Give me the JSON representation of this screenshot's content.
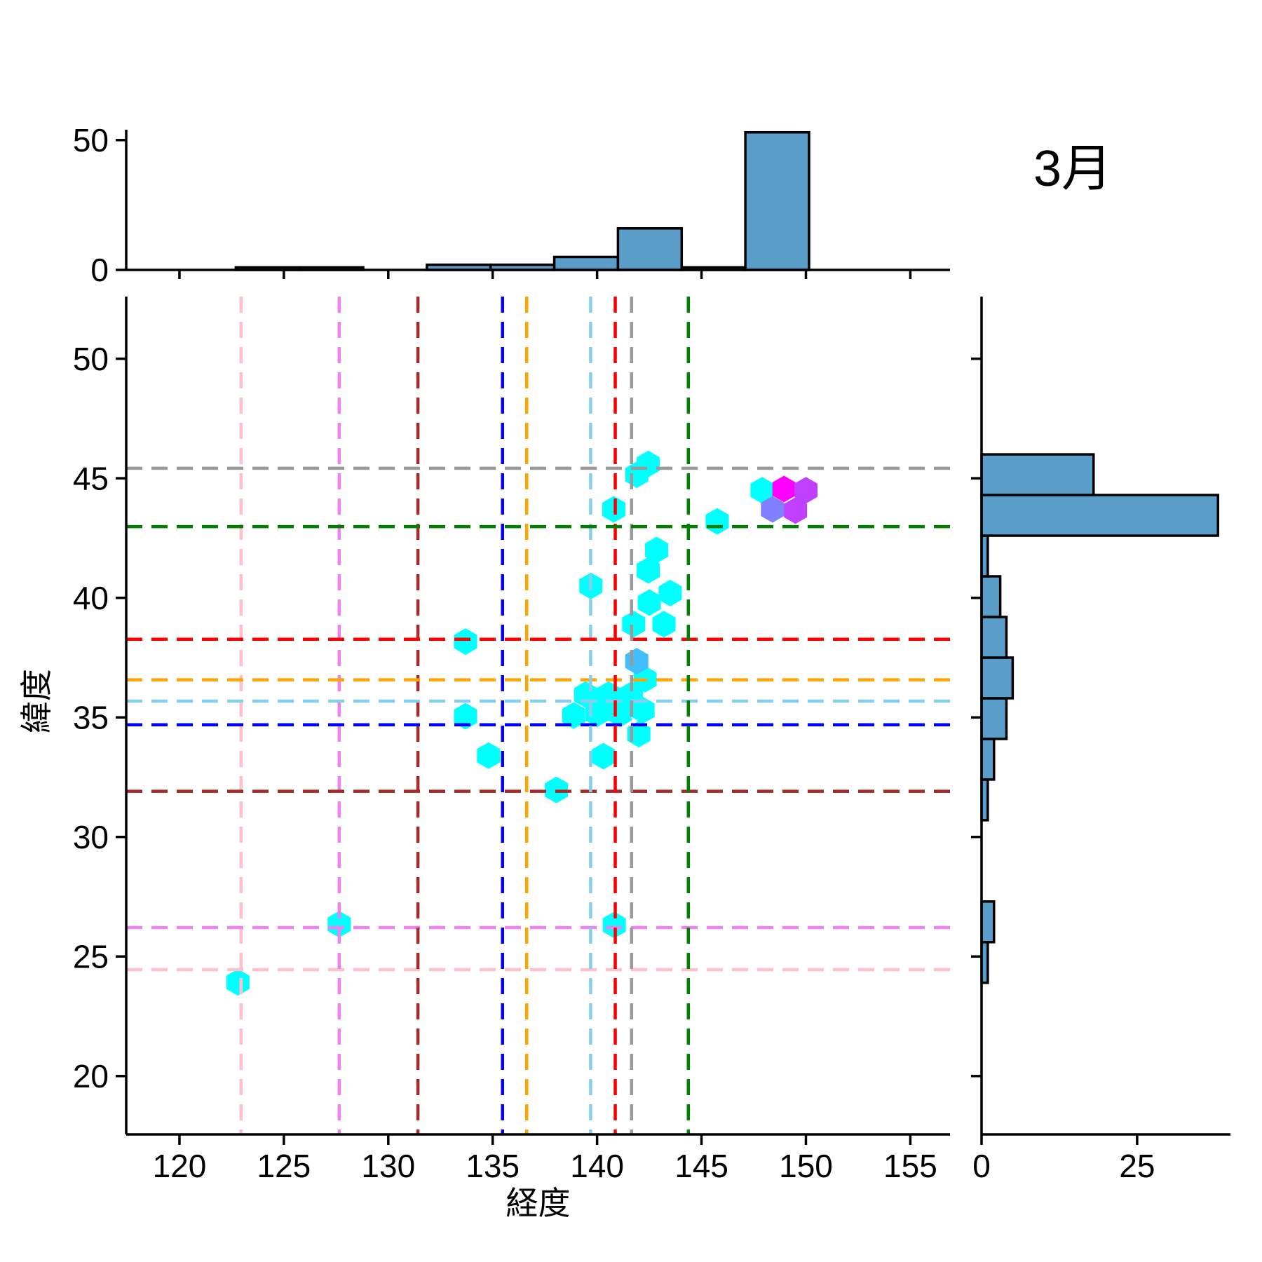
{
  "title": "3月",
  "axes": {
    "main": {
      "xlabel": "経度",
      "ylabel": "緯度",
      "xlim": [
        117.45,
        156.9
      ],
      "ylim": [
        17.56,
        52.6
      ],
      "xticks": [
        120,
        125,
        130,
        135,
        140,
        145,
        150,
        155
      ],
      "yticks": [
        20,
        25,
        30,
        35,
        40,
        45,
        50
      ]
    },
    "top_marginal": {
      "ylim": [
        0,
        54
      ],
      "yticks": [
        0,
        50
      ]
    },
    "right_marginal": {
      "xlim": [
        0,
        40
      ],
      "xticks": [
        0,
        25
      ]
    }
  },
  "colors": {
    "histogram_fill": "#5B9DC9",
    "histogram_edge": "#000000",
    "hex_low": "#00FFFF",
    "hex_high": "#FF00FF",
    "axis": "#000000"
  },
  "chart_data": [
    {
      "id": "main-hexbin",
      "type": "scatter",
      "marker": "hexagon",
      "colormap": "cool (cyan = low density, magenta = high density)",
      "xlabel": "経度",
      "ylabel": "緯度",
      "xlim": [
        117.45,
        156.9
      ],
      "ylim": [
        17.56,
        52.6
      ],
      "xticks": [
        120,
        125,
        130,
        135,
        140,
        145,
        150,
        155
      ],
      "yticks": [
        20,
        25,
        30,
        35,
        40,
        45,
        50
      ],
      "points": [
        {
          "lon": 122.8,
          "lat": 23.92,
          "color": "#00FFFF",
          "density_level": 1
        },
        {
          "lon": 127.65,
          "lat": 26.35,
          "color": "#00FFFF",
          "density_level": 1
        },
        {
          "lon": 140.82,
          "lat": 26.32,
          "color": "#00FFFF",
          "density_level": 1
        },
        {
          "lon": 138.05,
          "lat": 31.97,
          "color": "#00FFFF",
          "density_level": 1
        },
        {
          "lon": 134.8,
          "lat": 33.4,
          "color": "#00FFFF",
          "density_level": 1
        },
        {
          "lon": 140.3,
          "lat": 33.38,
          "color": "#00FFFF",
          "density_level": 1
        },
        {
          "lon": 133.7,
          "lat": 35.05,
          "color": "#00FFFF",
          "density_level": 1
        },
        {
          "lon": 133.7,
          "lat": 38.17,
          "color": "#00FFFF",
          "density_level": 1
        },
        {
          "lon": 138.88,
          "lat": 35.08,
          "color": "#00FFFF",
          "density_level": 1
        },
        {
          "lon": 139.45,
          "lat": 35.95,
          "color": "#00FFFF",
          "density_level": 1
        },
        {
          "lon": 140.0,
          "lat": 35.15,
          "color": "#00FFFF",
          "density_level": 1
        },
        {
          "lon": 140.55,
          "lat": 35.95,
          "color": "#00FFFF",
          "density_level": 1
        },
        {
          "lon": 141.1,
          "lat": 35.15,
          "color": "#00FFFF",
          "density_level": 1
        },
        {
          "lon": 141.65,
          "lat": 35.95,
          "color": "#00FFFF",
          "density_level": 1
        },
        {
          "lon": 142.2,
          "lat": 35.3,
          "color": "#00FFFF",
          "density_level": 1
        },
        {
          "lon": 142.0,
          "lat": 34.3,
          "color": "#00FFFF",
          "density_level": 1
        },
        {
          "lon": 142.3,
          "lat": 36.6,
          "color": "#00FFFF",
          "density_level": 1
        },
        {
          "lon": 141.9,
          "lat": 37.35,
          "color": "#40BFFF",
          "density_level": 2
        },
        {
          "lon": 141.75,
          "lat": 38.9,
          "color": "#00FFFF",
          "density_level": 1
        },
        {
          "lon": 143.2,
          "lat": 38.9,
          "color": "#00FFFF",
          "density_level": 1
        },
        {
          "lon": 142.5,
          "lat": 39.8,
          "color": "#00FFFF",
          "density_level": 1
        },
        {
          "lon": 139.7,
          "lat": 40.5,
          "color": "#00FFFF",
          "density_level": 1
        },
        {
          "lon": 143.5,
          "lat": 40.2,
          "color": "#00FFFF",
          "density_level": 1
        },
        {
          "lon": 142.45,
          "lat": 41.15,
          "color": "#00FFFF",
          "density_level": 1
        },
        {
          "lon": 142.85,
          "lat": 42.0,
          "color": "#00FFFF",
          "density_level": 1
        },
        {
          "lon": 140.8,
          "lat": 43.7,
          "color": "#00FFFF",
          "density_level": 1
        },
        {
          "lon": 145.75,
          "lat": 43.2,
          "color": "#00FFFF",
          "density_level": 1
        },
        {
          "lon": 141.9,
          "lat": 45.15,
          "color": "#00FFFF",
          "density_level": 1
        },
        {
          "lon": 142.45,
          "lat": 45.6,
          "color": "#00FFFF",
          "density_level": 1
        },
        {
          "lon": 147.9,
          "lat": 44.5,
          "color": "#00FFFF",
          "density_level": 1
        },
        {
          "lon": 148.4,
          "lat": 43.7,
          "color": "#8080FF",
          "density_level": 3
        },
        {
          "lon": 149.5,
          "lat": 43.65,
          "color": "#BF40FF",
          "density_level": 4
        },
        {
          "lon": 148.95,
          "lat": 44.55,
          "color": "#FF00FF",
          "density_level": 5
        },
        {
          "lon": 150.0,
          "lat": 44.5,
          "color": "#BF40FF",
          "density_level": 4
        }
      ],
      "reference_lines": [
        {
          "name": "pink",
          "color": "#FFC0CB",
          "lon": 122.95,
          "lat": 24.45
        },
        {
          "name": "violet",
          "color": "#EE82EE",
          "lon": 127.65,
          "lat": 26.21
        },
        {
          "name": "brown",
          "color": "#A52A2A",
          "lon": 131.42,
          "lat": 31.91
        },
        {
          "name": "blue",
          "color": "#0000FF",
          "lon": 135.47,
          "lat": 34.69
        },
        {
          "name": "orange",
          "color": "#FFA500",
          "lon": 136.63,
          "lat": 36.57
        },
        {
          "name": "skyblue",
          "color": "#87CEEB",
          "lon": 139.69,
          "lat": 35.68
        },
        {
          "name": "red",
          "color": "#FF0000",
          "lon": 140.87,
          "lat": 38.27
        },
        {
          "name": "gray",
          "color": "#9A9A9A",
          "lon": 141.65,
          "lat": 45.42
        },
        {
          "name": "green",
          "color": "#008000",
          "lon": 144.37,
          "lat": 42.98
        }
      ]
    },
    {
      "id": "top-marginal-histogram",
      "type": "bar",
      "orientation": "vertical",
      "xlabel": "",
      "ylabel": "",
      "bin_edges": [
        122.7,
        125.75,
        128.8,
        131.85,
        134.9,
        137.95,
        141.0,
        144.05,
        147.1,
        150.15
      ],
      "values": [
        1,
        1,
        0,
        2,
        2,
        5,
        16,
        1,
        53
      ],
      "ylim": [
        0,
        54
      ],
      "yticks": [
        0,
        50
      ]
    },
    {
      "id": "right-marginal-histogram",
      "type": "bar",
      "orientation": "horizontal",
      "xlabel": "",
      "ylabel": "",
      "bin_edges": [
        23.9,
        25.6,
        27.3,
        29.0,
        30.7,
        32.4,
        34.1,
        35.8,
        37.5,
        39.2,
        40.9,
        42.6,
        44.3,
        46.0
      ],
      "values": [
        1,
        2,
        0,
        0,
        1,
        2,
        4,
        5,
        4,
        3,
        1,
        38,
        18
      ],
      "xlim": [
        0,
        40
      ],
      "xticks": [
        0,
        25
      ]
    }
  ]
}
